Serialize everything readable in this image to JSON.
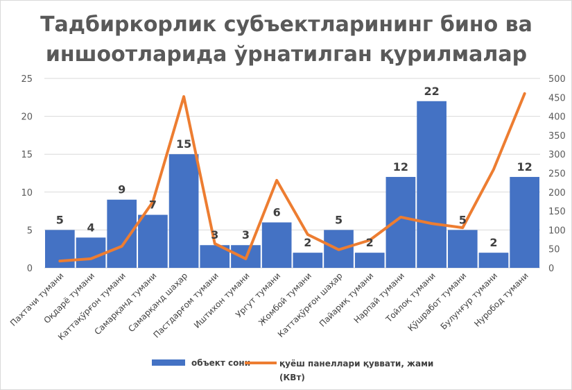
{
  "chart_data": {
    "type": "bar+line",
    "title": "Тадбиркорлик субъектларининг бино ва иншоотларида ўрнатилган қурилмалар",
    "title_lines": [
      "Тадбиркорлик субъектларининг бино ва",
      "иншоотларида ўрнатилган қурилмалар"
    ],
    "categories": [
      "Пахтачи тумани",
      "Оқдарё тумани",
      "Каттақўрғон тумани",
      "Самарқанд тумани",
      "Самарқанд шаҳар",
      "Пастдарғом тумани",
      "Иштихон тумани",
      "Ургут тумани",
      "Жомбой тумани",
      "Каттақўрғон шаҳар",
      "Пайариқ тумани",
      "Нарпай тумани",
      "Тойлоқ тумани",
      "Қўшработ тумани",
      "Булунғур тумани",
      "Нуробод тумани"
    ],
    "series": [
      {
        "name": "объект сони",
        "type": "bar",
        "axis": "left",
        "color": "#4472C4",
        "values": [
          5,
          4,
          9,
          7,
          15,
          3,
          3,
          6,
          2,
          5,
          2,
          12,
          22,
          5,
          2,
          12
        ]
      },
      {
        "name": "қуёш панеллари қуввати, жами (КВт)",
        "legend_lines": [
          "қуёш панеллари қуввати, жами",
          "(КВт)"
        ],
        "type": "line",
        "axis": "right",
        "color": "#ED7D31",
        "values": [
          18,
          24,
          57,
          174,
          452,
          64,
          24,
          231,
          88,
          48,
          73,
          134,
          117,
          106,
          260,
          460
        ]
      }
    ],
    "y_left": {
      "range": [
        0,
        25
      ],
      "ticks": [
        "0",
        "5",
        "10",
        "15",
        "20",
        "25"
      ]
    },
    "y_right": {
      "range": [
        0,
        500
      ],
      "ticks": [
        "0",
        "50",
        "100",
        "150",
        "200",
        "250",
        "300",
        "350",
        "400",
        "450",
        "500"
      ]
    },
    "grid": true,
    "legend": "bottom"
  }
}
